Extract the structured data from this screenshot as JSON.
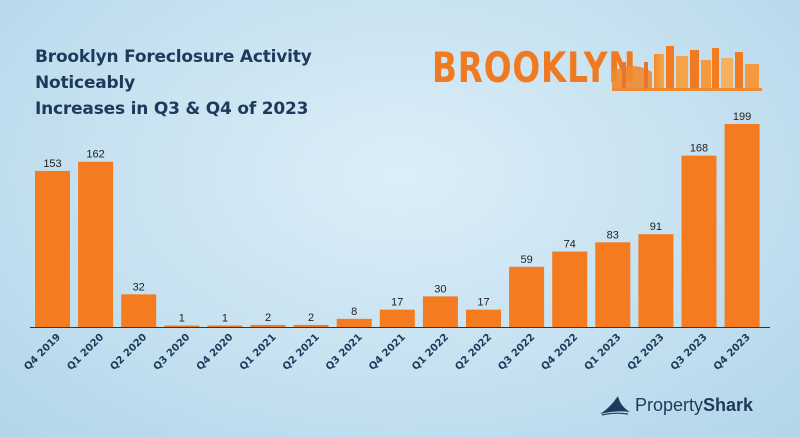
{
  "title_line1": "Brooklyn Foreclosure Activity Noticeably",
  "title_line2": "Increases in Q3 & Q4 of 2023",
  "brand_word": "BROOKLYN",
  "logo": {
    "text_light": "Property",
    "text_bold": "Shark"
  },
  "colors": {
    "bar": "#f47b20",
    "title": "#1d3a5c",
    "axis": "#1d3a5c"
  },
  "chart_data": {
    "type": "bar",
    "title": "Brooklyn Foreclosure Activity Noticeably Increases in Q3 & Q4 of 2023",
    "categories": [
      "Q4 2019",
      "Q1 2020",
      "Q2 2020",
      "Q3 2020",
      "Q4 2020",
      "Q1 2021",
      "Q2 2021",
      "Q3 2021",
      "Q4 2021",
      "Q1 2022",
      "Q2 2022",
      "Q3 2022",
      "Q4 2022",
      "Q1 2023",
      "Q2 2023",
      "Q3 2023",
      "Q4 2023"
    ],
    "values": [
      153,
      162,
      32,
      1,
      1,
      2,
      2,
      8,
      17,
      30,
      17,
      59,
      74,
      83,
      91,
      168,
      199
    ],
    "ylim": [
      0,
      199
    ],
    "grid": false,
    "legend": "none"
  }
}
